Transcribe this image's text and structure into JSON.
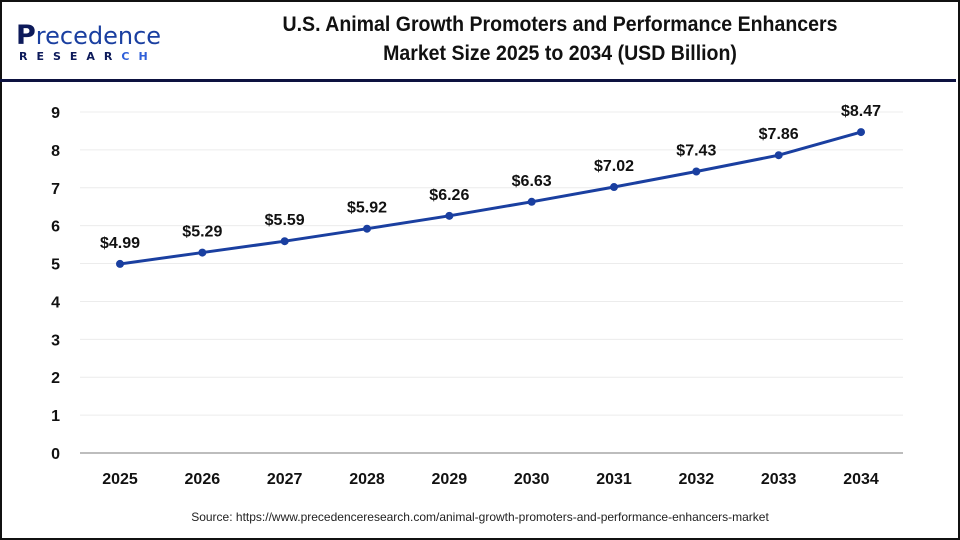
{
  "brand": {
    "logo_main_first": "P",
    "logo_main_rest": "recedence",
    "logo_sub_main": "RESEAR",
    "logo_sub_accent": "CH"
  },
  "header": {
    "title_line1": "U.S. Animal Growth Promoters and Performance Enhancers",
    "title_line2": "Market Size 2025 to 2034 (USD Billion)"
  },
  "source": "Source: https://www.precedenceresearch.com/animal-growth-promoters-and-performance-enhancers-market",
  "colors": {
    "line": "#1a3fa0",
    "grid": "#ececec",
    "axis": "#bdbdbd",
    "divider": "#0d1240"
  },
  "chart_data": {
    "type": "line",
    "title": "U.S. Animal Growth Promoters and Performance Enhancers Market Size 2025 to 2034 (USD Billion)",
    "xlabel": "",
    "ylabel": "",
    "categories": [
      "2025",
      "2026",
      "2027",
      "2028",
      "2029",
      "2030",
      "2031",
      "2032",
      "2033",
      "2034"
    ],
    "series": [
      {
        "name": "Market Size (USD Billion)",
        "values": [
          4.99,
          5.29,
          5.59,
          5.92,
          6.26,
          6.63,
          7.02,
          7.43,
          7.86,
          8.47
        ],
        "labels": [
          "$4.99",
          "$5.29",
          "$5.59",
          "$5.92",
          "$6.26",
          "$6.63",
          "$7.02",
          "$7.43",
          "$7.86",
          "$8.47"
        ]
      }
    ],
    "ylim": [
      0,
      9
    ],
    "yticks": [
      "0",
      "1",
      "2",
      "3",
      "4",
      "5",
      "6",
      "7",
      "8",
      "9"
    ],
    "grid": true,
    "legend": "none"
  }
}
